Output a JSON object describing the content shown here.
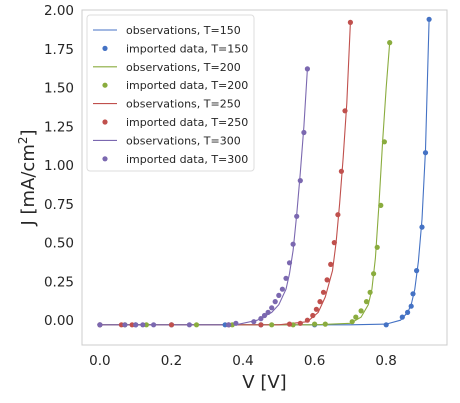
{
  "chart_data": {
    "type": "line",
    "xlabel": "V [V]",
    "ylabel_main": "J [mA/cm",
    "ylabel_sup": "2",
    "ylabel_close": "]",
    "xlim": [
      -0.05,
      0.97
    ],
    "ylim": [
      -0.16,
      2.0
    ],
    "xticks": [
      0.0,
      0.2,
      0.4,
      0.6,
      0.8
    ],
    "xtick_labels": [
      "0.0",
      "0.2",
      "0.4",
      "0.6",
      "0.8"
    ],
    "yticks": [
      0.0,
      0.25,
      0.5,
      0.75,
      1.0,
      1.25,
      1.5,
      1.75,
      2.0
    ],
    "ytick_labels": [
      "0.00",
      "0.25",
      "0.50",
      "0.75",
      "1.00",
      "1.25",
      "1.50",
      "1.75",
      "2.00"
    ],
    "grid": false,
    "legend_position": "top-left",
    "series": [
      {
        "name": "observations, T=150",
        "kind": "line",
        "color": "#4472c4",
        "x": [
          0.0,
          0.7,
          0.8,
          0.84,
          0.86,
          0.87,
          0.88,
          0.89,
          0.9,
          0.91,
          0.92
        ],
        "y": [
          -0.03,
          -0.03,
          -0.025,
          0.0,
          0.05,
          0.1,
          0.2,
          0.38,
          0.65,
          1.1,
          1.94
        ]
      },
      {
        "name": "imported data, T=150",
        "kind": "scatter",
        "color": "#4472c4",
        "x": [
          0.0,
          0.1,
          0.2,
          0.35,
          0.45,
          0.6,
          0.8,
          0.845,
          0.86,
          0.87,
          0.875,
          0.885,
          0.9,
          0.91,
          0.92
        ],
        "y": [
          -0.03,
          -0.03,
          -0.03,
          -0.03,
          -0.03,
          -0.03,
          -0.03,
          0.02,
          0.05,
          0.09,
          0.17,
          0.32,
          0.6,
          1.08,
          1.94
        ]
      },
      {
        "name": "observations, T=200",
        "kind": "line",
        "color": "#8aac3e",
        "x": [
          0.0,
          0.6,
          0.7,
          0.73,
          0.75,
          0.76,
          0.77,
          0.78,
          0.79,
          0.8,
          0.81
        ],
        "y": [
          -0.03,
          -0.03,
          -0.02,
          0.02,
          0.1,
          0.2,
          0.4,
          0.75,
          1.15,
          1.5,
          1.79
        ]
      },
      {
        "name": "imported data, T=200",
        "kind": "scatter",
        "color": "#8aac3e",
        "x": [
          0.07,
          0.13,
          0.27,
          0.37,
          0.48,
          0.54,
          0.6,
          0.63,
          0.705,
          0.715,
          0.73,
          0.745,
          0.755,
          0.765,
          0.775,
          0.785,
          0.795,
          0.81
        ],
        "y": [
          -0.03,
          -0.03,
          -0.03,
          -0.03,
          -0.03,
          -0.03,
          -0.025,
          -0.025,
          -0.01,
          0.02,
          0.06,
          0.12,
          0.18,
          0.3,
          0.47,
          0.74,
          1.15,
          1.79
        ]
      },
      {
        "name": "observations, T=250",
        "kind": "line",
        "color": "#c0504d",
        "x": [
          0.0,
          0.5,
          0.58,
          0.61,
          0.63,
          0.65,
          0.66,
          0.67,
          0.68,
          0.69,
          0.7
        ],
        "y": [
          -0.03,
          -0.03,
          -0.01,
          0.05,
          0.15,
          0.32,
          0.5,
          0.75,
          1.05,
          1.4,
          1.92
        ]
      },
      {
        "name": "imported data, T=250",
        "kind": "scatter",
        "color": "#c0504d",
        "x": [
          0.0,
          0.06,
          0.09,
          0.2,
          0.36,
          0.45,
          0.53,
          0.56,
          0.58,
          0.595,
          0.605,
          0.615,
          0.625,
          0.635,
          0.645,
          0.655,
          0.665,
          0.675,
          0.685,
          0.7
        ],
        "y": [
          -0.03,
          -0.03,
          -0.03,
          -0.03,
          -0.03,
          -0.03,
          -0.025,
          -0.02,
          0.0,
          0.03,
          0.07,
          0.12,
          0.18,
          0.26,
          0.36,
          0.5,
          0.68,
          0.96,
          1.35,
          1.92
        ]
      },
      {
        "name": "observations, T=300",
        "kind": "line",
        "color": "#7b68b0",
        "x": [
          0.0,
          0.38,
          0.44,
          0.48,
          0.5,
          0.52,
          0.53,
          0.54,
          0.55,
          0.56,
          0.57,
          0.58
        ],
        "y": [
          -0.03,
          -0.03,
          0.0,
          0.05,
          0.1,
          0.2,
          0.3,
          0.45,
          0.68,
          0.95,
          1.25,
          1.62
        ]
      },
      {
        "name": "imported data, T=300",
        "kind": "scatter",
        "color": "#7b68b0",
        "x": [
          0.0,
          0.07,
          0.1,
          0.12,
          0.15,
          0.25,
          0.36,
          0.38,
          0.43,
          0.45,
          0.46,
          0.47,
          0.48,
          0.49,
          0.5,
          0.51,
          0.52,
          0.53,
          0.54,
          0.55,
          0.56,
          0.57,
          0.58
        ],
        "y": [
          -0.03,
          -0.03,
          -0.03,
          -0.03,
          -0.03,
          -0.03,
          -0.03,
          -0.02,
          -0.01,
          0.01,
          0.03,
          0.05,
          0.08,
          0.12,
          0.16,
          0.2,
          0.27,
          0.37,
          0.49,
          0.67,
          0.9,
          1.21,
          1.62
        ]
      }
    ]
  }
}
